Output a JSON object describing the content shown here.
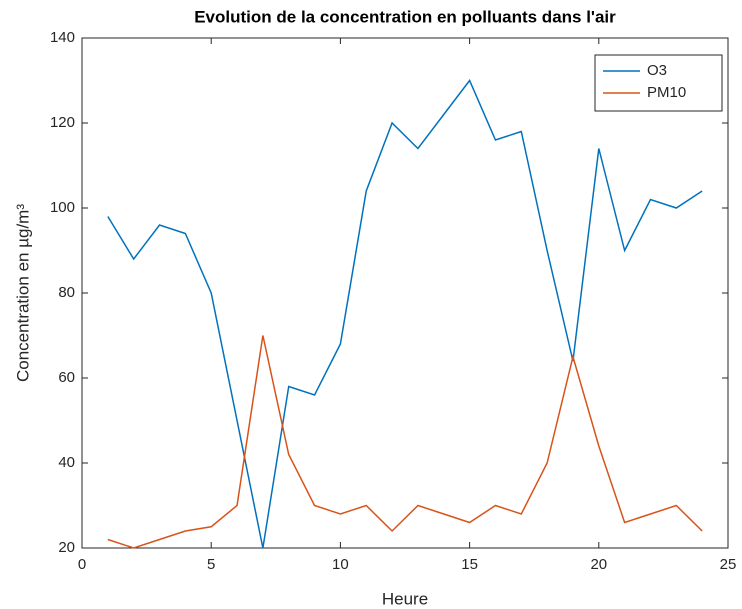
{
  "chart_data": {
    "type": "line",
    "title": "Evolution de la concentration en polluants dans l'air",
    "x_label": "Heure",
    "y_label": "Concentration en µg/m³",
    "x": [
      1,
      2,
      3,
      4,
      5,
      6,
      7,
      8,
      9,
      10,
      11,
      12,
      13,
      14,
      15,
      16,
      17,
      18,
      19,
      20,
      21,
      22,
      23,
      24
    ],
    "series": [
      {
        "name": "O3",
        "color": "#0072bd",
        "values": [
          98,
          88,
          96,
          94,
          80,
          50,
          20,
          58,
          56,
          68,
          104,
          120,
          114,
          122,
          130,
          116,
          118,
          90,
          64,
          114,
          90,
          102,
          100,
          104
        ]
      },
      {
        "name": "PM10",
        "color": "#d95319",
        "values": [
          22,
          20,
          22,
          24,
          25,
          30,
          70,
          42,
          30,
          28,
          30,
          24,
          30,
          28,
          26,
          30,
          28,
          40,
          65,
          44,
          26,
          28,
          30,
          24
        ]
      }
    ],
    "xlim": [
      0,
      25
    ],
    "xticks": [
      0,
      5,
      10,
      15,
      20,
      25
    ],
    "ylim": [
      20,
      140
    ],
    "yticks": [
      20,
      40,
      60,
      80,
      100,
      120,
      140
    ],
    "grid": false,
    "legend": "northeast"
  }
}
